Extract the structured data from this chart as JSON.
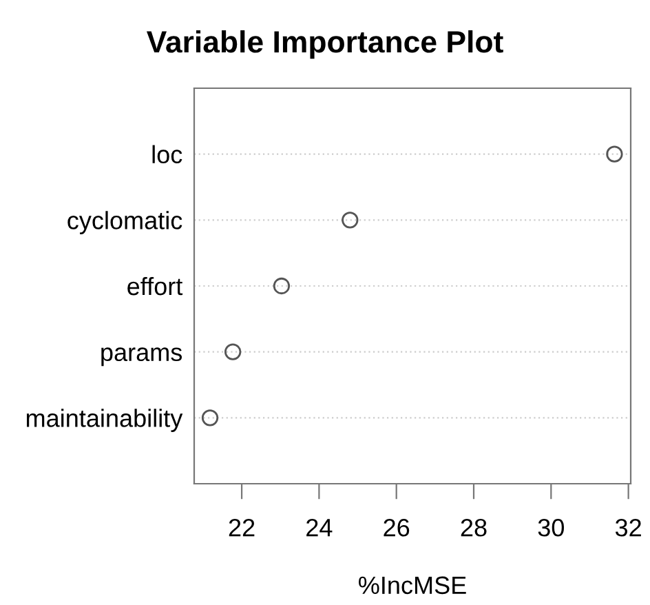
{
  "chart_data": {
    "type": "scatter",
    "orientation": "horizontal",
    "title": "Variable Importance Plot",
    "xlabel": "%IncMSE",
    "categories": [
      "loc",
      "cyclomatic",
      "effort",
      "params",
      "maintainability"
    ],
    "values": [
      31.64,
      24.8,
      23.03,
      21.77,
      21.18
    ],
    "color": "#555555",
    "marker": "circle",
    "grid": "y",
    "xlim": [
      20.77,
      32.06
    ],
    "xticks": [
      22,
      24,
      26,
      28,
      30,
      32
    ]
  }
}
